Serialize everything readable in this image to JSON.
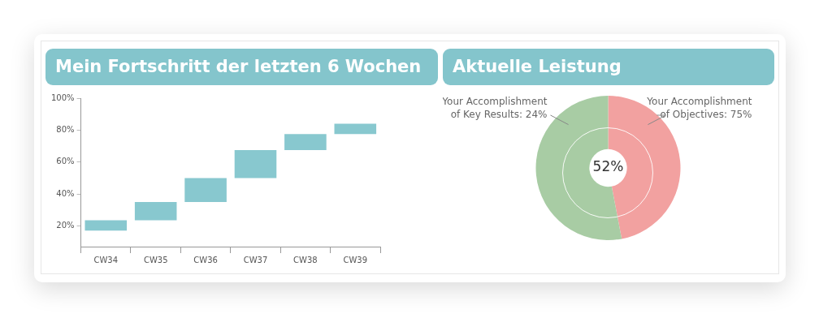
{
  "chart_data": [
    {
      "type": "bar",
      "title": "Mein Fortschritt der letzten 6 Wochen",
      "categories": [
        "CW34",
        "CW35",
        "CW36",
        "CW37",
        "CW38",
        "CW39"
      ],
      "base": [
        17,
        23.5,
        35,
        50,
        67.5,
        77.5
      ],
      "values": [
        6.5,
        11.5,
        15,
        17.5,
        10,
        6.5
      ],
      "color": "#88c8cf",
      "ylim": [
        7,
        100
      ],
      "yticks": [
        {
          "value": 20,
          "label": "20%"
        },
        {
          "value": 40,
          "label": "40%"
        },
        {
          "value": 60,
          "label": "60%"
        },
        {
          "value": 80,
          "label": "80%"
        },
        {
          "value": 100,
          "label": "100%"
        }
      ]
    },
    {
      "type": "donut",
      "title": "Aktuelle Leistung",
      "categories": [
        "Your Accomplishment of Objectives: 75%",
        "Your Accomplishment of Key Results: 24%"
      ],
      "values": [
        47,
        53
      ],
      "colors": [
        "#f2a1a0",
        "#a8cca4"
      ],
      "annotations": [
        "52%"
      ]
    }
  ]
}
